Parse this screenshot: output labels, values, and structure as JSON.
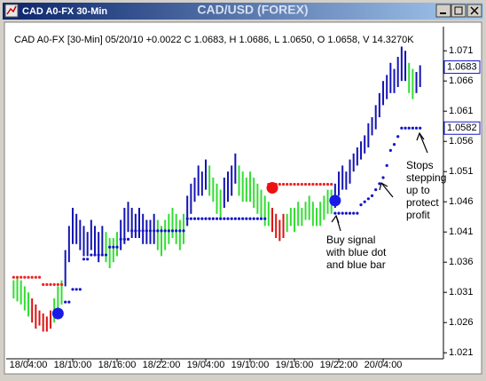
{
  "window_title": "CAD A0-FX 30-Min",
  "chart_data": {
    "type": "ohlc",
    "title": "CAD/USD (FOREX)",
    "subtitle": "CAD A0-FX [30-Min] 05/20/10 +0.0022 C 1.0683, H 1.0686, L 1.0650, O 1.0658, V 14.3270K",
    "high": [
      1.033,
      1.0335,
      1.033,
      1.032,
      1.031,
      1.03,
      1.029,
      1.028,
      1.0275,
      1.027,
      1.028,
      1.03,
      1.032,
      1.033,
      1.038,
      1.042,
      1.045,
      1.044,
      1.043,
      1.042,
      1.041,
      1.043,
      1.042,
      1.041,
      1.042,
      1.041,
      1.04,
      1.04,
      1.041,
      1.043,
      1.045,
      1.046,
      1.045,
      1.044,
      1.045,
      1.044,
      1.043,
      1.043,
      1.044,
      1.043,
      1.042,
      1.043,
      1.044,
      1.045,
      1.044,
      1.043,
      1.044,
      1.047,
      1.049,
      1.05,
      1.052,
      1.051,
      1.053,
      1.052,
      1.05,
      1.049,
      1.048,
      1.05,
      1.051,
      1.052,
      1.054,
      1.052,
      1.051,
      1.05,
      1.051,
      1.05,
      1.049,
      1.048,
      1.047,
      1.046,
      1.045,
      1.044,
      1.043,
      1.044,
      1.044,
      1.045,
      1.045,
      1.046,
      1.045,
      1.046,
      1.047,
      1.046,
      1.045,
      1.046,
      1.047,
      1.048,
      1.048,
      1.049,
      1.051,
      1.052,
      1.051,
      1.053,
      1.054,
      1.055,
      1.056,
      1.057,
      1.059,
      1.06,
      1.062,
      1.064,
      1.066,
      1.067,
      1.069,
      1.068,
      1.07,
      1.0717,
      1.071,
      1.069,
      1.068,
      1.0675,
      1.0686
    ],
    "low": [
      1.03,
      1.0295,
      1.029,
      1.028,
      1.027,
      1.026,
      1.025,
      1.0255,
      1.0245,
      1.0245,
      1.025,
      1.026,
      1.027,
      1.029,
      1.032,
      1.036,
      1.039,
      1.039,
      1.038,
      1.037,
      1.037,
      1.038,
      1.037,
      1.036,
      1.037,
      1.036,
      1.035,
      1.036,
      1.037,
      1.038,
      1.039,
      1.041,
      1.04,
      1.04,
      1.04,
      1.039,
      1.039,
      1.039,
      1.039,
      1.038,
      1.037,
      1.038,
      1.039,
      1.04,
      1.039,
      1.038,
      1.039,
      1.042,
      1.044,
      1.046,
      1.047,
      1.047,
      1.048,
      1.047,
      1.046,
      1.044,
      1.043,
      1.045,
      1.046,
      1.047,
      1.049,
      1.047,
      1.046,
      1.046,
      1.046,
      1.045,
      1.044,
      1.043,
      1.042,
      1.042,
      1.041,
      1.04,
      1.0395,
      1.04,
      1.041,
      1.042,
      1.041,
      1.042,
      1.042,
      1.043,
      1.043,
      1.042,
      1.042,
      1.042,
      1.043,
      1.044,
      1.044,
      1.045,
      1.047,
      1.048,
      1.048,
      1.049,
      1.051,
      1.052,
      1.053,
      1.054,
      1.055,
      1.057,
      1.058,
      1.06,
      1.062,
      1.063,
      1.064,
      1.064,
      1.065,
      1.066,
      1.066,
      1.064,
      1.063,
      1.064,
      1.065
    ],
    "trend": [
      "g",
      "g",
      "g",
      "g",
      "g",
      "r",
      "r",
      "r",
      "r",
      "r",
      "r",
      "g",
      "g",
      "g",
      "b",
      "b",
      "b",
      "b",
      "b",
      "b",
      "b",
      "b",
      "b",
      "b",
      "b",
      "g",
      "g",
      "g",
      "g",
      "b",
      "b",
      "b",
      "b",
      "b",
      "b",
      "b",
      "b",
      "b",
      "b",
      "g",
      "g",
      "g",
      "g",
      "g",
      "g",
      "g",
      "g",
      "b",
      "b",
      "b",
      "b",
      "b",
      "b",
      "g",
      "g",
      "g",
      "g",
      "b",
      "b",
      "b",
      "b",
      "g",
      "g",
      "g",
      "g",
      "g",
      "g",
      "g",
      "g",
      "g",
      "r",
      "r",
      "r",
      "r",
      "g",
      "g",
      "g",
      "g",
      "g",
      "g",
      "g",
      "g",
      "g",
      "g",
      "g",
      "g",
      "g",
      "b",
      "b",
      "b",
      "b",
      "b",
      "b",
      "b",
      "b",
      "b",
      "b",
      "b",
      "b",
      "b",
      "b",
      "b",
      "b",
      "b",
      "b",
      "b",
      "b",
      "g",
      "g",
      "b",
      "b"
    ],
    "trend_colors": {
      "g": "#33dd33",
      "r": "#dd1111",
      "b": "#1414b4"
    },
    "stops": [
      {
        "color": "#ee2222",
        "x": [
          0,
          1,
          2,
          3,
          4,
          5,
          6,
          7,
          8,
          9,
          10,
          11,
          12,
          13,
          69,
          70,
          71,
          72,
          73,
          74,
          75,
          76,
          77,
          78,
          79,
          80,
          81,
          82,
          83,
          84,
          85,
          86
        ],
        "values": [
          1.0335,
          1.0335,
          1.0335,
          1.0335,
          1.0335,
          1.0335,
          1.0335,
          1.0335,
          1.0323,
          1.0323,
          1.0323,
          1.0323,
          1.0323,
          1.0323,
          1.0489,
          1.0489,
          1.0489,
          1.0489,
          1.0489,
          1.0489,
          1.0489,
          1.0489,
          1.0489,
          1.0489,
          1.0489,
          1.0489,
          1.0489,
          1.0489,
          1.0489,
          1.0489,
          1.0489,
          1.0489
        ]
      },
      {
        "color": "#1414c8",
        "x": [
          14,
          15,
          16,
          17,
          18,
          19,
          20,
          21,
          22,
          23,
          24,
          25,
          26,
          27,
          28,
          29,
          30,
          31,
          32,
          33,
          34,
          35,
          36,
          37,
          38,
          39,
          40,
          41,
          42,
          43,
          44,
          45,
          46,
          47,
          48,
          49,
          50,
          51,
          52,
          53,
          54,
          55,
          56,
          57,
          58,
          59,
          60,
          61,
          62,
          63,
          64,
          65,
          66,
          67,
          68,
          87,
          88,
          89,
          90,
          91,
          92,
          93,
          94,
          95,
          96,
          97,
          98,
          99,
          100,
          101,
          102,
          103,
          104,
          105,
          106,
          107,
          108,
          109,
          110
        ],
        "values": [
          1.0294,
          1.0294,
          1.0315,
          1.0315,
          1.0315,
          1.0365,
          1.0365,
          1.0372,
          1.0372,
          1.0372,
          1.0372,
          1.0372,
          1.0385,
          1.0385,
          1.0385,
          1.0398,
          1.0398,
          1.0398,
          1.0412,
          1.0412,
          1.0412,
          1.0412,
          1.0412,
          1.0412,
          1.0412,
          1.0412,
          1.0412,
          1.0412,
          1.0412,
          1.0412,
          1.0412,
          1.0412,
          1.0412,
          1.0432,
          1.0432,
          1.0432,
          1.0432,
          1.0432,
          1.0432,
          1.0432,
          1.0432,
          1.0432,
          1.0432,
          1.0432,
          1.0432,
          1.0432,
          1.0432,
          1.0432,
          1.0432,
          1.0432,
          1.0432,
          1.0432,
          1.0432,
          1.0432,
          1.0432,
          1.0441,
          1.0441,
          1.0441,
          1.0441,
          1.0441,
          1.0441,
          1.0441,
          1.0455,
          1.046,
          1.0465,
          1.047,
          1.048,
          1.049,
          1.05,
          1.052,
          1.0545,
          1.0555,
          1.0568,
          1.0582,
          1.0582,
          1.0582,
          1.0582,
          1.0582,
          1.0582
        ]
      }
    ],
    "signals": [
      {
        "x": 12,
        "value": 1.0275,
        "color": "#1a1ae8"
      },
      {
        "x": 70,
        "value": 1.0483,
        "color": "#ee1111"
      },
      {
        "x": 87,
        "value": 1.0462,
        "color": "#1a1ae8"
      }
    ],
    "price_labels": [
      {
        "value": 1.0683,
        "color": "#1414c8"
      },
      {
        "value": 1.0582,
        "color": "#1414c8"
      }
    ],
    "ylim": [
      1.02,
      1.075
    ],
    "yticks": [
      1.021,
      1.026,
      1.031,
      1.036,
      1.041,
      1.046,
      1.051,
      1.056,
      1.061,
      1.066,
      1.071
    ],
    "xlim": [
      -2,
      116
    ],
    "xticks": [
      {
        "value": 4,
        "label": "18/04:00"
      },
      {
        "value": 16,
        "label": "18/10:00"
      },
      {
        "value": 28,
        "label": "18/16:00"
      },
      {
        "value": 40,
        "label": "18/22:00"
      },
      {
        "value": 52,
        "label": "19/04:00"
      },
      {
        "value": 64,
        "label": "19/10:00"
      },
      {
        "value": 76,
        "label": "19/16:00"
      },
      {
        "value": 88,
        "label": "19/22:00"
      },
      {
        "value": 100,
        "label": "20/04:00"
      }
    ],
    "annotations": [
      {
        "lines": [
          "Buy signal",
          "with blue dot",
          "and blue bar"
        ]
      },
      {
        "lines": [
          "Stops",
          "stepping",
          "up to",
          "protect",
          "profit"
        ]
      }
    ]
  }
}
